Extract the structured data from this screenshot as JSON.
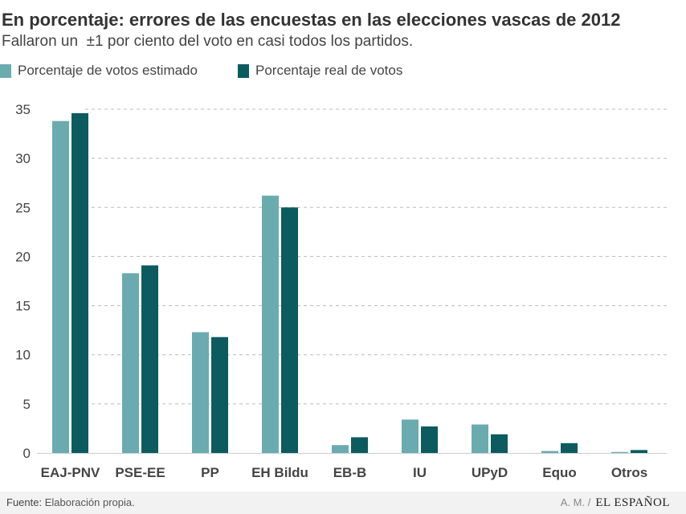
{
  "chart_data": {
    "type": "bar",
    "title": "En porcentaje: errores de las encuestas en las elecciones vascas de 2012",
    "subtitle": "Fallaron un  ±1 por ciento del voto en casi todos los partidos.",
    "categories": [
      "EAJ-PNV",
      "PSE-EE",
      "PP",
      "EH Bildu",
      "EB-B",
      "IU",
      "UPyD",
      "Equo",
      "Otros"
    ],
    "series": [
      {
        "name": "Porcentaje de votos estimado",
        "color": "#6aabb0",
        "values": [
          33.8,
          18.3,
          12.3,
          26.2,
          0.8,
          3.4,
          2.9,
          0.2,
          0.1
        ]
      },
      {
        "name": "Porcentaje real de votos",
        "color": "#0b5b5f",
        "values": [
          34.6,
          19.1,
          11.8,
          25.0,
          1.6,
          2.7,
          1.9,
          1.0,
          0.3
        ]
      }
    ],
    "ylim": [
      0,
      35
    ],
    "yticks": [
      0,
      5,
      10,
      15,
      20,
      25,
      30,
      35
    ],
    "xlabel": "",
    "ylabel": "",
    "grid": true,
    "legend_position": "top-left"
  },
  "footer": {
    "source_label": "Fuente:",
    "source_text": "Elaboración propia.",
    "author": "A. M. /",
    "brand": "EL ESPAÑOL"
  }
}
